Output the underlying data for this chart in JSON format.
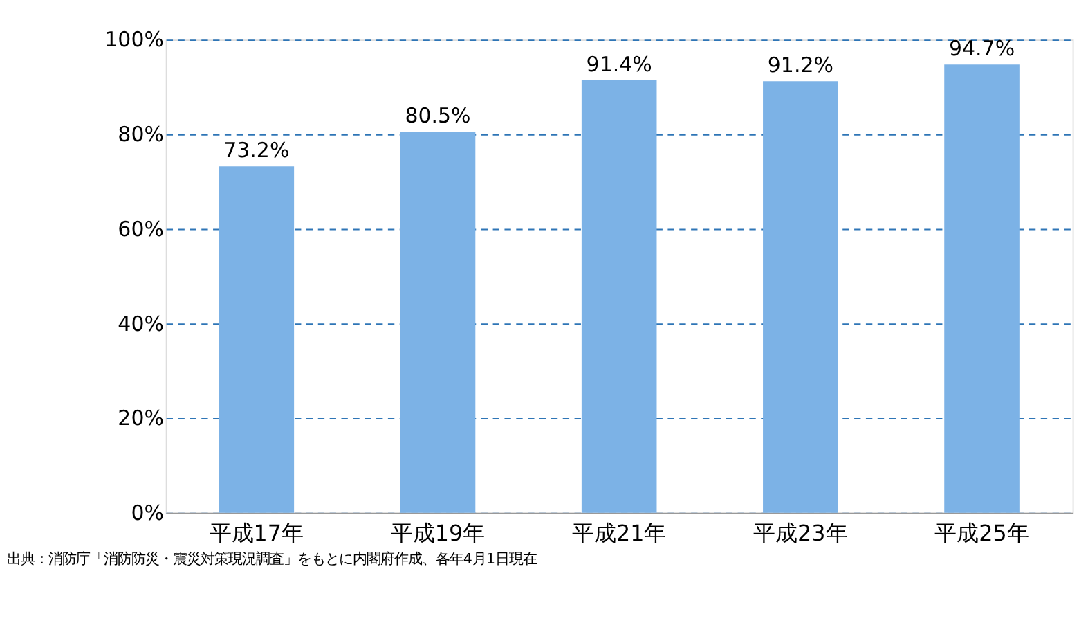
{
  "chart_data": {
    "type": "bar",
    "categories": [
      "平成17年",
      "平成19年",
      "平成21年",
      "平成23年",
      "平成25年"
    ],
    "values": [
      73.2,
      80.5,
      91.4,
      91.2,
      94.7
    ],
    "value_labels": [
      "73.2%",
      "80.5%",
      "91.4%",
      "91.2%",
      "94.7%"
    ],
    "color": "#7cb2e6",
    "ylim": [
      0,
      100
    ],
    "yticks": [
      {
        "value": 0,
        "label": "0%"
      },
      {
        "value": 20,
        "label": "20%"
      },
      {
        "value": 40,
        "label": "40%"
      },
      {
        "value": 60,
        "label": "60%"
      },
      {
        "value": 80,
        "label": "80%"
      },
      {
        "value": 100,
        "label": "100%"
      }
    ],
    "grid": "y",
    "annotations": [
      "出典：消防庁「消防防災・震災対策現況調査」をもとに内閣府作成、各年4月1日現在"
    ]
  }
}
